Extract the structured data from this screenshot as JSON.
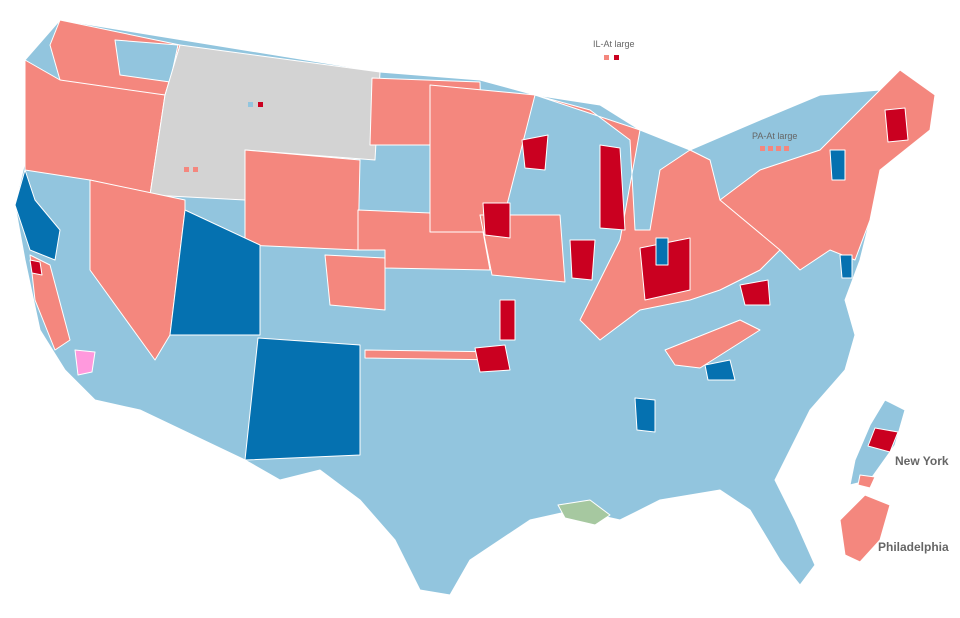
{
  "annotations": {
    "il_at_large": "IL-At large",
    "pa_at_large": "PA-At large"
  },
  "insets": {
    "new_york": "New York",
    "philadelphia": "Philadelphia"
  }
}
